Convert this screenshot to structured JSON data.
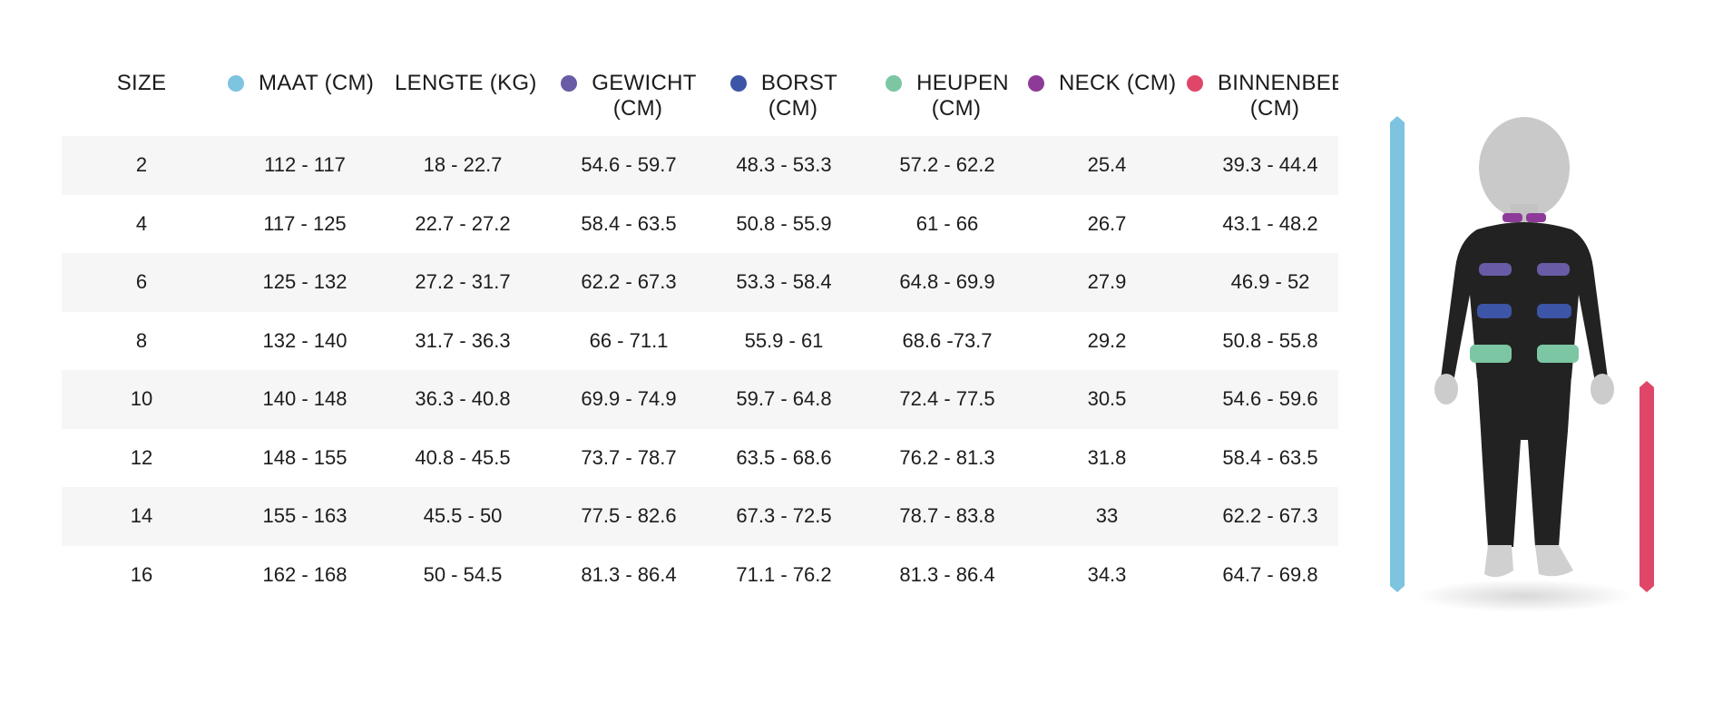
{
  "colors": {
    "maat": "#7ec4e0",
    "gewicht": "#6a5ba6",
    "borst": "#3d55a6",
    "heupen": "#7cc6a4",
    "neck": "#8e3a98",
    "binnenbeen": "#df4668",
    "row_shade": "#f6f6f6"
  },
  "headers": {
    "size": "SIZE",
    "maat": "MAAT (CM)",
    "lengte": "LENGTE (KG)",
    "gewicht_1": "GEWICHT",
    "gewicht_2": "(CM)",
    "borst_1": "BORST",
    "borst_2": "(CM)",
    "heupen_1": "HEUPEN",
    "heupen_2": "(CM)",
    "neck": "NECK (CM)",
    "binnenbeen_1": "BINNENBEEN",
    "binnenbeen_2": "(CM)"
  },
  "rows": [
    {
      "size": "2",
      "maat": "112 - 117",
      "lengte": "18 - 22.7",
      "gewicht": "54.6 - 59.7",
      "borst": "48.3 - 53.3",
      "heupen": "57.2 - 62.2",
      "neck": "25.4",
      "binnenbeen": "39.3 - 44.4"
    },
    {
      "size": "4",
      "maat": "117 - 125",
      "lengte": "22.7 - 27.2",
      "gewicht": "58.4 - 63.5",
      "borst": "50.8 - 55.9",
      "heupen": "61 - 66",
      "neck": "26.7",
      "binnenbeen": "43.1 - 48.2"
    },
    {
      "size": "6",
      "maat": "125 - 132",
      "lengte": "27.2 - 31.7",
      "gewicht": "62.2 - 67.3",
      "borst": "53.3 - 58.4",
      "heupen": "64.8 - 69.9",
      "neck": "27.9",
      "binnenbeen": "46.9 - 52"
    },
    {
      "size": "8",
      "maat": "132 - 140",
      "lengte": "31.7 - 36.3",
      "gewicht": "66 - 71.1",
      "borst": "55.9 - 61",
      "heupen": "68.6 -73.7",
      "neck": "29.2",
      "binnenbeen": "50.8 - 55.8"
    },
    {
      "size": "10",
      "maat": "140 - 148",
      "lengte": "36.3 - 40.8",
      "gewicht": "69.9 - 74.9",
      "borst": "59.7 - 64.8",
      "heupen": "72.4 - 77.5",
      "neck": "30.5",
      "binnenbeen": "54.6 - 59.6"
    },
    {
      "size": "12",
      "maat": "148 - 155",
      "lengte": "40.8 - 45.5",
      "gewicht": "73.7 - 78.7",
      "borst": "63.5 - 68.6",
      "heupen": "76.2 - 81.3",
      "neck": "31.8",
      "binnenbeen": "58.4 - 63.5"
    },
    {
      "size": "14",
      "maat": "155 - 163",
      "lengte": "45.5 - 50",
      "gewicht": "77.5 - 82.6",
      "borst": "67.3 - 72.5",
      "heupen": "78.7 - 83.8",
      "neck": "33",
      "binnenbeen": "62.2 - 67.3"
    },
    {
      "size": "16",
      "maat": "162 - 168",
      "lengte": "50 - 54.5",
      "gewicht": "81.3 - 86.4",
      "borst": "71.1 - 76.2",
      "heupen": "81.3 - 86.4",
      "neck": "34.3",
      "binnenbeen": "64.7 - 69.8"
    }
  ]
}
